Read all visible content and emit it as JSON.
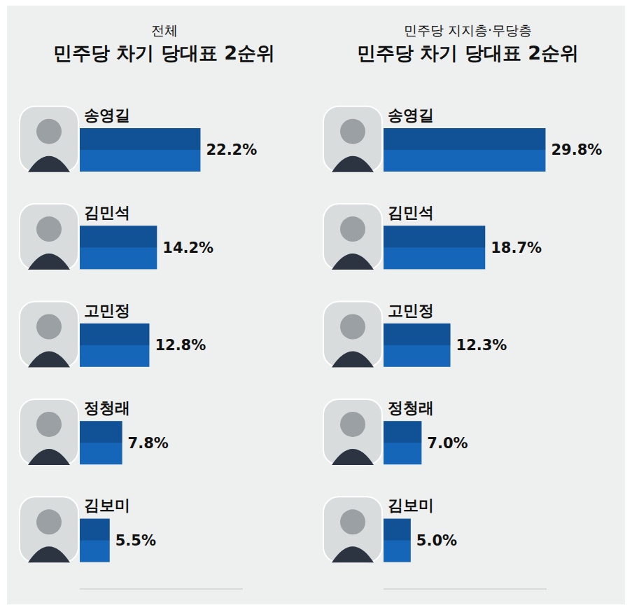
{
  "chart_data": [
    {
      "type": "bar",
      "orientation": "horizontal",
      "subtitle": "전체",
      "title": "민주당 차기 당대표 2순위",
      "categories": [
        "송영길",
        "김민석",
        "고민정",
        "정청래",
        "김보미"
      ],
      "values": [
        22.2,
        14.2,
        12.8,
        7.8,
        5.5
      ],
      "value_labels": [
        "22.2%",
        "14.2%",
        "12.8%",
        "7.8%",
        "5.5%"
      ],
      "color": "#1565b8",
      "xlim": [
        0,
        30
      ],
      "grid": false,
      "data_labels": true,
      "tick_labels": "y"
    },
    {
      "type": "bar",
      "orientation": "horizontal",
      "subtitle": "민주당 지지층·무당층",
      "title": "민주당 차기 당대표 2순위",
      "categories": [
        "송영길",
        "김민석",
        "고민정",
        "정청래",
        "김보미"
      ],
      "values": [
        29.8,
        18.7,
        12.3,
        7.0,
        5.0
      ],
      "value_labels": [
        "29.8%",
        "18.7%",
        "12.3%",
        "7.0%",
        "5.0%"
      ],
      "color": "#1565b8",
      "xlim": [
        0,
        30
      ],
      "grid": false,
      "data_labels": true,
      "tick_labels": "y"
    }
  ]
}
